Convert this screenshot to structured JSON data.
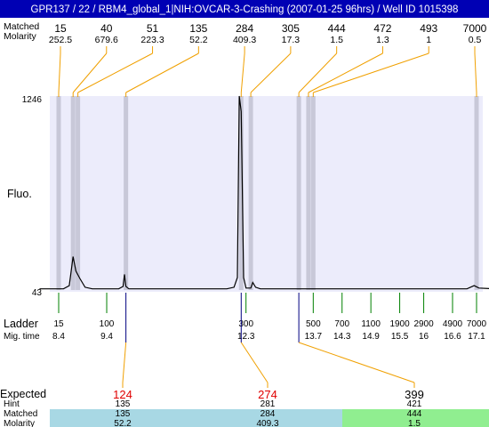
{
  "title": "GPR137 / 22 / RBM4_global_1|NIH:OVCAR-3-Crashing (2007-01-25 96hrs) / Well ID 1015398",
  "colors": {
    "title_bg": "#0000b4",
    "plot_bg": "#ececfb",
    "band": "#c8c8d8",
    "trace": "#000000",
    "connector": "#f0a000",
    "ladder_tick": "#008000",
    "expected_highlight": "#e00000",
    "cyan_band": "#a8d8e4",
    "green_band": "#90ee90"
  },
  "labels": {
    "top_rows": [
      "Matched",
      "Molarity"
    ],
    "fluo": "Fluo.",
    "ladder": "Ladder",
    "mig_time": "Mig. time",
    "expected": "Expected",
    "hint": "Hint",
    "matched": "Matched",
    "molarity": "Molarity"
  },
  "chart_data": {
    "type": "line",
    "y_axis": {
      "max_label": "1246",
      "min_label": "43",
      "ylim": [
        43,
        1246
      ]
    },
    "x_axis_mig_time": [
      8.4,
      17.1
    ],
    "top_peaks": [
      {
        "size": "15",
        "molarity": "252.5",
        "mig": 8.4
      },
      {
        "size": "40",
        "molarity": "679.6",
        "mig": 8.7
      },
      {
        "size": "51",
        "molarity": "223.3",
        "mig": 8.8
      },
      {
        "size": "135",
        "molarity": "52.2",
        "mig": 9.8
      },
      {
        "size": "284",
        "molarity": "409.3",
        "mig": 12.2
      },
      {
        "size": "305",
        "molarity": "17.3",
        "mig": 12.4
      },
      {
        "size": "444",
        "molarity": "1.5",
        "mig": 13.4
      },
      {
        "size": "472",
        "molarity": "1.3",
        "mig": 13.6
      },
      {
        "size": "493",
        "molarity": "1",
        "mig": 13.7
      },
      {
        "size": "7000",
        "molarity": "0.5",
        "mig": 17.1
      }
    ],
    "ladder": [
      {
        "size": "15",
        "mig": "8.4",
        "t": 8.4
      },
      {
        "size": "100",
        "mig": "9.4",
        "t": 9.4
      },
      {
        "size": "300",
        "mig": "12.3",
        "t": 12.3
      },
      {
        "size": "500",
        "mig": "13.7",
        "t": 13.7
      },
      {
        "size": "700",
        "mig": "14.3",
        "t": 14.3
      },
      {
        "size": "1100",
        "mig": "14.9",
        "t": 14.9
      },
      {
        "size": "1900",
        "mig": "15.5",
        "t": 15.5
      },
      {
        "size": "2900",
        "mig": "16",
        "t": 16.0
      },
      {
        "size": "4900",
        "mig": "16.6",
        "t": 16.6
      },
      {
        "size": "7000",
        "mig": "17.1",
        "t": 17.1
      }
    ],
    "trace": [
      [
        8.0,
        50
      ],
      [
        8.5,
        50
      ],
      [
        8.62,
        70
      ],
      [
        8.7,
        250
      ],
      [
        8.76,
        160
      ],
      [
        8.84,
        115
      ],
      [
        8.95,
        60
      ],
      [
        9.1,
        50
      ],
      [
        9.65,
        50
      ],
      [
        9.74,
        65
      ],
      [
        9.77,
        140
      ],
      [
        9.8,
        65
      ],
      [
        9.86,
        50
      ],
      [
        11.9,
        50
      ],
      [
        12.05,
        60
      ],
      [
        12.12,
        120
      ],
      [
        12.16,
        1246
      ],
      [
        12.2,
        1150
      ],
      [
        12.25,
        120
      ],
      [
        12.3,
        55
      ],
      [
        12.4,
        55
      ],
      [
        12.44,
        90
      ],
      [
        12.5,
        60
      ],
      [
        12.6,
        50
      ],
      [
        16.9,
        50
      ],
      [
        17.05,
        70
      ],
      [
        17.15,
        55
      ],
      [
        17.5,
        50
      ]
    ],
    "expected": [
      {
        "expected": "124",
        "hint": "135",
        "matched": "135",
        "molarity": "52.2",
        "highlight": true,
        "link_mig": 9.8
      },
      {
        "expected": "274",
        "hint": "281",
        "matched": "284",
        "molarity": "409.3",
        "highlight": true,
        "link_mig": 12.2
      },
      {
        "expected": "399",
        "hint": "421",
        "matched": "444",
        "molarity": "1.5",
        "highlight": false,
        "link_mig": 13.4
      }
    ]
  }
}
